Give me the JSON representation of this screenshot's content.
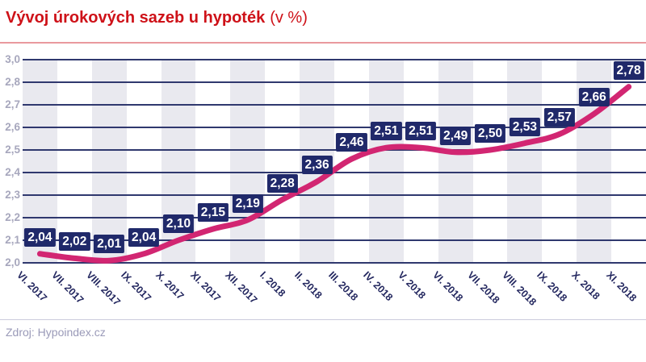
{
  "title": {
    "main": "Vývoj úrokových sazeb u hypoték",
    "suffix": "(v %)"
  },
  "footer": {
    "source": "Zdroj: Hypoindex.cz"
  },
  "colors": {
    "title_red": "#ce1118",
    "title_rule_pink": "#e9999e",
    "line_pink": "#d22672",
    "label_box_navy": "#20296a",
    "label_text_white": "#ffffff",
    "gridline_navy": "#2f386e",
    "stripe_gray": "#e9e9ef",
    "y_label_gray": "#a7a7bd",
    "x_label_navy": "#23275f",
    "source_gray": "#9a9ab8"
  },
  "chart_data": {
    "type": "line",
    "title": "Vývoj úrokových sazeb u hypoték (v %)",
    "categories": [
      "VI. 2017",
      "VII. 2017",
      "VIII. 2017",
      "IX. 2017",
      "X. 2017",
      "XI. 2017",
      "XII. 2017",
      "I. 2018",
      "II. 2018",
      "III. 2018",
      "IV. 2018",
      "V. 2018",
      "VI. 2018",
      "VII. 2018",
      "VIII. 2018",
      "IX. 2018",
      "X. 2018",
      "XI. 2018"
    ],
    "values": [
      2.04,
      2.02,
      2.01,
      2.04,
      2.1,
      2.15,
      2.19,
      2.28,
      2.36,
      2.46,
      2.51,
      2.51,
      2.49,
      2.5,
      2.53,
      2.57,
      2.66,
      2.78
    ],
    "data_labels": [
      "2,04",
      "2,02",
      "2,01",
      "2,04",
      "2,10",
      "2,15",
      "2,19",
      "2,28",
      "2,36",
      "2,46",
      "2,51",
      "2,51",
      "2,49",
      "2,50",
      "2,53",
      "2,57",
      "2,66",
      "2,78"
    ],
    "y_tick_labels": [
      "3,0",
      "2,8",
      "2,7",
      "2,6",
      "2,5",
      "2,4",
      "2,3",
      "2,2",
      "2,1",
      "2,0"
    ],
    "ylim": [
      2.0,
      2.9
    ],
    "xlabel": "",
    "ylabel": "",
    "grid": true,
    "legend": "none",
    "background_stripes": "alternating vertical columns"
  }
}
